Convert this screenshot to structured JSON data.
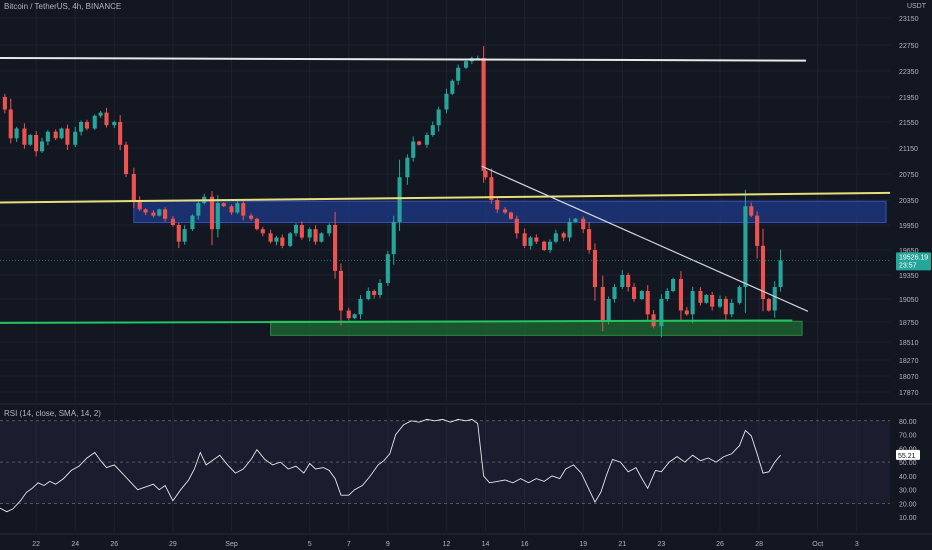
{
  "header": {
    "title": "Bitcoin / TetherUS, 4h, BINANCE",
    "currency": "USDT"
  },
  "rsi_title": "RSI (14, close, SMA, 14, 2)",
  "colors": {
    "background": "#131722",
    "up": "#26a69a",
    "down": "#ef5350",
    "grid": "#1e2230",
    "text": "#b2b5be"
  },
  "chart_data": [
    {
      "type": "candlestick",
      "ylim": [
        17870,
        23150
      ],
      "y_ticks": [
        23150,
        22750,
        22350,
        21950,
        21550,
        21150,
        20750,
        20350,
        19950,
        19650,
        19350,
        19050,
        18750,
        18510,
        18270,
        18070,
        17870
      ],
      "x_ticks": [
        "22",
        "24",
        "26",
        "29",
        "Sep",
        "5",
        "7",
        "9",
        "12",
        "14",
        "16",
        "19",
        "21",
        "23",
        "26",
        "28",
        "Oct",
        "3"
      ],
      "x_tick_days": [
        0,
        2,
        4,
        7,
        10,
        14,
        16,
        18,
        21,
        23,
        25,
        28,
        30,
        32,
        35,
        37,
        40,
        42
      ],
      "x_range_days": [
        -1.85,
        43.7
      ],
      "last_price": {
        "value": "19526.19",
        "countdown": "23:57"
      },
      "series": [
        {
          "name": "price",
          "points": [
            [
              -1.9,
              21950
            ],
            [
              -1.6,
              21750
            ],
            [
              -1.3,
              21300
            ],
            [
              -1.0,
              21450
            ],
            [
              -0.6,
              21200
            ],
            [
              -0.3,
              21350
            ],
            [
              0.0,
              21100
            ],
            [
              0.3,
              21250
            ],
            [
              0.6,
              21400
            ],
            [
              1.0,
              21300
            ],
            [
              1.3,
              21450
            ],
            [
              1.6,
              21200
            ],
            [
              2.0,
              21400
            ],
            [
              2.3,
              21550
            ],
            [
              2.6,
              21450
            ],
            [
              3.0,
              21650
            ],
            [
              3.3,
              21700
            ],
            [
              3.6,
              21500
            ],
            [
              4.0,
              21550
            ],
            [
              4.3,
              21200
            ],
            [
              4.6,
              20750
            ],
            [
              5.0,
              20350
            ],
            [
              5.3,
              20200
            ],
            [
              5.6,
              20150
            ],
            [
              6.0,
              20100
            ],
            [
              6.3,
              20200
            ],
            [
              6.6,
              20050
            ],
            [
              7.0,
              19950
            ],
            [
              7.3,
              19750
            ],
            [
              7.6,
              19900
            ],
            [
              8.0,
              20100
            ],
            [
              8.3,
              20300
            ],
            [
              8.6,
              20400
            ],
            [
              9.0,
              19900
            ],
            [
              9.3,
              20300
            ],
            [
              9.6,
              20250
            ],
            [
              10.0,
              20150
            ],
            [
              10.3,
              20300
            ],
            [
              10.6,
              20100
            ],
            [
              11.0,
              20050
            ],
            [
              11.3,
              19900
            ],
            [
              11.6,
              19850
            ],
            [
              12.0,
              19750
            ],
            [
              12.3,
              19800
            ],
            [
              12.6,
              19700
            ],
            [
              13.0,
              19850
            ],
            [
              13.3,
              19950
            ],
            [
              13.6,
              19800
            ],
            [
              14.0,
              19900
            ],
            [
              14.3,
              19750
            ],
            [
              14.6,
              19850
            ],
            [
              15.0,
              19950
            ],
            [
              15.3,
              19400
            ],
            [
              15.6,
              18900
            ],
            [
              16.0,
              18800
            ],
            [
              16.3,
              18850
            ],
            [
              16.6,
              19050
            ],
            [
              17.0,
              19150
            ],
            [
              17.3,
              19100
            ],
            [
              17.6,
              19250
            ],
            [
              18.0,
              19600
            ],
            [
              18.3,
              20000
            ],
            [
              18.6,
              20700
            ],
            [
              19.0,
              21000
            ],
            [
              19.3,
              21250
            ],
            [
              19.6,
              21200
            ],
            [
              20.0,
              21350
            ],
            [
              20.3,
              21500
            ],
            [
              20.6,
              21750
            ],
            [
              21.0,
              22000
            ],
            [
              21.3,
              22200
            ],
            [
              21.6,
              22400
            ],
            [
              22.0,
              22500
            ],
            [
              22.3,
              22550
            ],
            [
              22.6,
              22550
            ],
            [
              22.9,
              20800
            ],
            [
              23.0,
              20700
            ],
            [
              23.3,
              20350
            ],
            [
              23.6,
              20200
            ],
            [
              24.0,
              20150
            ],
            [
              24.3,
              20050
            ],
            [
              24.6,
              19850
            ],
            [
              25.0,
              19700
            ],
            [
              25.3,
              19800
            ],
            [
              25.6,
              19750
            ],
            [
              26.0,
              19650
            ],
            [
              26.3,
              19750
            ],
            [
              26.6,
              19850
            ],
            [
              27.0,
              19800
            ],
            [
              27.3,
              20000
            ],
            [
              27.6,
              20050
            ],
            [
              28.0,
              19900
            ],
            [
              28.3,
              19650
            ],
            [
              28.6,
              19200
            ],
            [
              29.0,
              18750
            ],
            [
              29.3,
              19050
            ],
            [
              29.6,
              19200
            ],
            [
              30.0,
              19350
            ],
            [
              30.3,
              19200
            ],
            [
              30.6,
              19050
            ],
            [
              31.0,
              19150
            ],
            [
              31.3,
              18850
            ],
            [
              31.6,
              18700
            ],
            [
              32.0,
              19050
            ],
            [
              32.3,
              19150
            ],
            [
              32.6,
              19300
            ],
            [
              33.0,
              18900
            ],
            [
              33.3,
              18850
            ],
            [
              33.6,
              19150
            ],
            [
              34.0,
              19000
            ],
            [
              34.3,
              19100
            ],
            [
              34.6,
              18950
            ],
            [
              35.0,
              19050
            ],
            [
              35.3,
              18850
            ],
            [
              35.6,
              19000
            ],
            [
              36.0,
              19200
            ],
            [
              36.3,
              20250
            ],
            [
              36.6,
              20100
            ],
            [
              36.9,
              19700
            ],
            [
              37.2,
              19050
            ],
            [
              37.5,
              18900
            ],
            [
              37.8,
              19200
            ],
            [
              38.1,
              19526
            ]
          ]
        }
      ],
      "annotations": {
        "resistance_line": {
          "from": [
            -1.85,
            22550
          ],
          "to": [
            39.4,
            22510
          ],
          "color": "#e8e8e8"
        },
        "upper_line": {
          "from": [
            -1.85,
            20310
          ],
          "to": [
            43.7,
            20460
          ],
          "color": "#e6e07a"
        },
        "support_line": {
          "from": [
            -1.85,
            18740
          ],
          "to": [
            38.7,
            18770
          ],
          "color": "#22c55e"
        },
        "trend_line": {
          "from": [
            22.8,
            20870
          ],
          "to": [
            39.5,
            18890
          ],
          "color": "#d1d4dc"
        },
        "blue_zone": {
          "x": [
            5.0,
            43.5
          ],
          "y": [
            19990,
            20330
          ],
          "color": "#1f3a8a"
        },
        "green_zone": {
          "x": [
            12.0,
            39.2
          ],
          "y": [
            18590,
            18760
          ],
          "color": "#1d6b32"
        }
      }
    },
    {
      "type": "line",
      "name": "RSI",
      "ylim": [
        0,
        90
      ],
      "y_ticks": [
        80,
        70,
        60,
        50,
        40,
        30,
        20,
        10
      ],
      "last_value": "55.21",
      "bands": [
        20,
        80
      ],
      "series": [
        {
          "name": "RSI",
          "points": [
            [
              -1.9,
              17
            ],
            [
              -1.5,
              14
            ],
            [
              -1.2,
              16
            ],
            [
              -0.8,
              22
            ],
            [
              -0.5,
              28
            ],
            [
              -0.2,
              31
            ],
            [
              0.1,
              35
            ],
            [
              0.4,
              33
            ],
            [
              0.7,
              36
            ],
            [
              1.0,
              34
            ],
            [
              1.4,
              38
            ],
            [
              1.8,
              44
            ],
            [
              2.2,
              47
            ],
            [
              2.6,
              53
            ],
            [
              3.0,
              57
            ],
            [
              3.3,
              51
            ],
            [
              3.6,
              46
            ],
            [
              4.0,
              48
            ],
            [
              4.4,
              42
            ],
            [
              4.8,
              36
            ],
            [
              5.2,
              30
            ],
            [
              5.6,
              32
            ],
            [
              6.0,
              34
            ],
            [
              6.3,
              30
            ],
            [
              6.6,
              33
            ],
            [
              7.0,
              22
            ],
            [
              7.4,
              30
            ],
            [
              7.8,
              37
            ],
            [
              8.1,
              45
            ],
            [
              8.4,
              57
            ],
            [
              8.7,
              48
            ],
            [
              9.0,
              51
            ],
            [
              9.4,
              55
            ],
            [
              9.8,
              48
            ],
            [
              10.2,
              42
            ],
            [
              10.6,
              45
            ],
            [
              11.0,
              52
            ],
            [
              11.3,
              59
            ],
            [
              11.7,
              52
            ],
            [
              12.1,
              48
            ],
            [
              12.5,
              50
            ],
            [
              12.9,
              45
            ],
            [
              13.3,
              47
            ],
            [
              13.7,
              42
            ],
            [
              14.0,
              49
            ],
            [
              14.3,
              45
            ],
            [
              14.7,
              46
            ],
            [
              15.0,
              44
            ],
            [
              15.3,
              38
            ],
            [
              15.6,
              26
            ],
            [
              16.0,
              26
            ],
            [
              16.3,
              30
            ],
            [
              16.7,
              33
            ],
            [
              17.1,
              40
            ],
            [
              17.5,
              48
            ],
            [
              17.8,
              51
            ],
            [
              18.1,
              56
            ],
            [
              18.4,
              70
            ],
            [
              18.8,
              77
            ],
            [
              19.2,
              80
            ],
            [
              19.6,
              79
            ],
            [
              20.0,
              81
            ],
            [
              20.4,
              80
            ],
            [
              20.8,
              81
            ],
            [
              21.2,
              79
            ],
            [
              21.6,
              81
            ],
            [
              22.0,
              80
            ],
            [
              22.3,
              81
            ],
            [
              22.6,
              78
            ],
            [
              22.9,
              40
            ],
            [
              23.2,
              35
            ],
            [
              23.6,
              36
            ],
            [
              24.0,
              37
            ],
            [
              24.4,
              35
            ],
            [
              24.8,
              38
            ],
            [
              25.2,
              35
            ],
            [
              25.6,
              38
            ],
            [
              26.0,
              36
            ],
            [
              26.4,
              40
            ],
            [
              26.8,
              38
            ],
            [
              27.1,
              45
            ],
            [
              27.5,
              48
            ],
            [
              27.9,
              42
            ],
            [
              28.3,
              30
            ],
            [
              28.6,
              21
            ],
            [
              28.9,
              28
            ],
            [
              29.2,
              41
            ],
            [
              29.5,
              52
            ],
            [
              29.9,
              50
            ],
            [
              30.3,
              43
            ],
            [
              30.7,
              46
            ],
            [
              31.0,
              38
            ],
            [
              31.3,
              31
            ],
            [
              31.7,
              44
            ],
            [
              32.0,
              43
            ],
            [
              32.4,
              50
            ],
            [
              32.8,
              54
            ],
            [
              33.2,
              50
            ],
            [
              33.6,
              55
            ],
            [
              34.0,
              51
            ],
            [
              34.4,
              53
            ],
            [
              34.8,
              50
            ],
            [
              35.2,
              54
            ],
            [
              35.6,
              56
            ],
            [
              36.0,
              62
            ],
            [
              36.3,
              73
            ],
            [
              36.6,
              69
            ],
            [
              36.9,
              56
            ],
            [
              37.2,
              42
            ],
            [
              37.5,
              43
            ],
            [
              37.8,
              50
            ],
            [
              38.1,
              55
            ]
          ]
        }
      ]
    }
  ]
}
